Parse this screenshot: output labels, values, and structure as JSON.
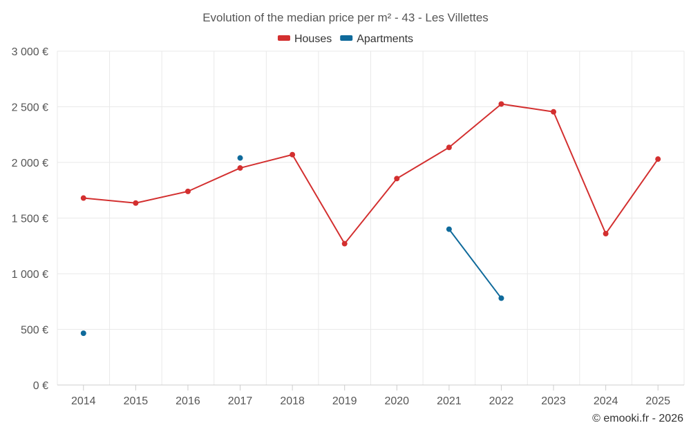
{
  "chart_data": {
    "type": "line",
    "title": "Evolution of the median price per m² - 43 - Les Villettes",
    "categories": [
      "2014",
      "2015",
      "2016",
      "2017",
      "2018",
      "2019",
      "2020",
      "2021",
      "2022",
      "2023",
      "2024",
      "2025"
    ],
    "ylim": [
      0,
      3000
    ],
    "yticks": [
      0,
      500,
      1000,
      1500,
      2000,
      2500,
      3000
    ],
    "ytick_labels": [
      "0 €",
      "500 €",
      "1 000 €",
      "1 500 €",
      "2 000 €",
      "2 500 €",
      "3 000 €"
    ],
    "grid": true,
    "legend_position": "top-center",
    "series": [
      {
        "name": "Houses",
        "color": "#d32f2f",
        "values": [
          1680,
          1635,
          1740,
          1950,
          2070,
          1270,
          1855,
          2135,
          2525,
          2455,
          1360,
          2030
        ]
      },
      {
        "name": "Apartments",
        "color": "#0f6a9b",
        "values": [
          465,
          null,
          null,
          2040,
          null,
          null,
          null,
          1400,
          780,
          null,
          null,
          null
        ]
      }
    ]
  },
  "credit": "© emooki.fr - 2026"
}
